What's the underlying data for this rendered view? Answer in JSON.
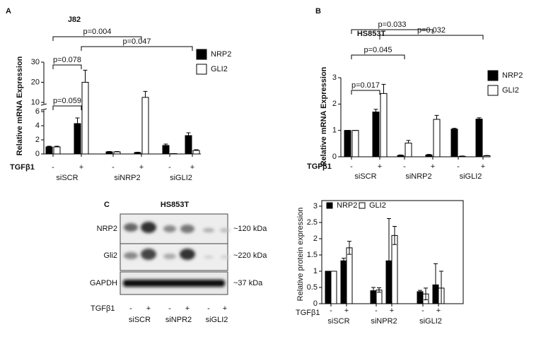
{
  "chart_data": [
    {
      "type": "bar",
      "panel": "A",
      "title": "J82",
      "ylabel": "Relative mRNA Expression",
      "treatment_label": "TGFβ1",
      "categories": [
        "-",
        "+",
        "-",
        "+",
        "-",
        "+"
      ],
      "groups": [
        "siSCR",
        "siNRP2",
        "siGLI2"
      ],
      "series": [
        {
          "name": "NRP2",
          "color": "#000000",
          "values": [
            1,
            4.3,
            0.3,
            0.2,
            1.2,
            2.6
          ],
          "errors": [
            0.1,
            0.8,
            0.05,
            0.05,
            0.2,
            0.4
          ]
        },
        {
          "name": "GLI2",
          "color": "#ffffff",
          "values": [
            1,
            20,
            0.3,
            12.5,
            0.05,
            0.5
          ],
          "errors": [
            0.1,
            6,
            0.05,
            3,
            0,
            0.1
          ]
        }
      ],
      "ylim": [
        0,
        30
      ],
      "ybreak": [
        6,
        10
      ],
      "yticks": [
        0,
        2,
        4,
        6,
        10,
        20,
        30
      ],
      "legend": "right",
      "annotations": [
        {
          "text": "p=0.059",
          "from": 0,
          "to": 1
        },
        {
          "text": "p=0.078",
          "from": 0,
          "to": 1
        },
        {
          "text": "p=0.004",
          "from": 0,
          "to": 3
        },
        {
          "text": "p=0.047",
          "from": 1,
          "to": 5
        }
      ]
    },
    {
      "type": "bar",
      "panel": "B",
      "title": "HS853T",
      "ylabel": "Relative mRNA Expression",
      "treatment_label": "TGFβ1",
      "categories": [
        "-",
        "+",
        "-",
        "+",
        "-",
        "+"
      ],
      "groups": [
        "siSCR",
        "siNRP2",
        "siGLI2"
      ],
      "series": [
        {
          "name": "NRP2",
          "color": "#000000",
          "values": [
            1,
            1.7,
            0.05,
            0.07,
            1.05,
            1.43
          ],
          "errors": [
            0,
            0.1,
            0.02,
            0.02,
            0.03,
            0.05
          ]
        },
        {
          "name": "GLI2",
          "color": "#ffffff",
          "values": [
            1,
            2.4,
            0.52,
            1.42,
            0.02,
            0.04
          ],
          "errors": [
            0,
            0.35,
            0.1,
            0.15,
            0.01,
            0.01
          ]
        }
      ],
      "ylim": [
        0,
        3
      ],
      "yticks": [
        0,
        1,
        2,
        3
      ],
      "legend": "right",
      "annotations": [
        {
          "text": "p=0.017",
          "from": 0,
          "to": 1
        },
        {
          "text": "p=0.045",
          "from": 0,
          "to": 2
        },
        {
          "text": "p=0.033",
          "from": 0,
          "to": 3
        },
        {
          "text": "p=0.032",
          "from": 1,
          "to": 5
        }
      ]
    },
    {
      "type": "bar",
      "ylabel": "Relative protein expression",
      "treatment_label": "TGFβ1",
      "categories": [
        "-",
        "+",
        "-",
        "+",
        "-",
        "+"
      ],
      "groups": [
        "siSCR",
        "siNPR2",
        "siGLI2"
      ],
      "series": [
        {
          "name": "NRP2",
          "color": "#000000",
          "values": [
            1,
            1.32,
            0.4,
            1.32,
            0.37,
            0.58
          ],
          "errors": [
            0,
            0.08,
            0.1,
            1.3,
            0.04,
            0.65
          ]
        },
        {
          "name": "GLI2",
          "color": "#ffffff",
          "values": [
            1,
            1.72,
            0.42,
            2.1,
            0.3,
            0.48
          ],
          "errors": [
            0,
            0.2,
            0.07,
            0.28,
            0.18,
            0.52
          ]
        }
      ],
      "ylim": [
        0,
        3
      ],
      "yticks": [
        0,
        0.5,
        1,
        1.5,
        2,
        2.5,
        3
      ],
      "legend": "top-left",
      "frame": true
    }
  ],
  "blot": {
    "panel": "C",
    "title": "HS853T",
    "rows": [
      {
        "protein": "NRP2",
        "size": "~120 kDa"
      },
      {
        "protein": "Gli2",
        "size": "~220 kDa"
      },
      {
        "protein": "GAPDH",
        "size": "~37 kDa"
      }
    ],
    "lanes": [
      "-",
      "+",
      "-",
      "+",
      "-",
      "+"
    ],
    "groups": [
      "siSCR",
      "siNPR2",
      "siGLI2"
    ],
    "treatment_label": "TGFβ1"
  }
}
